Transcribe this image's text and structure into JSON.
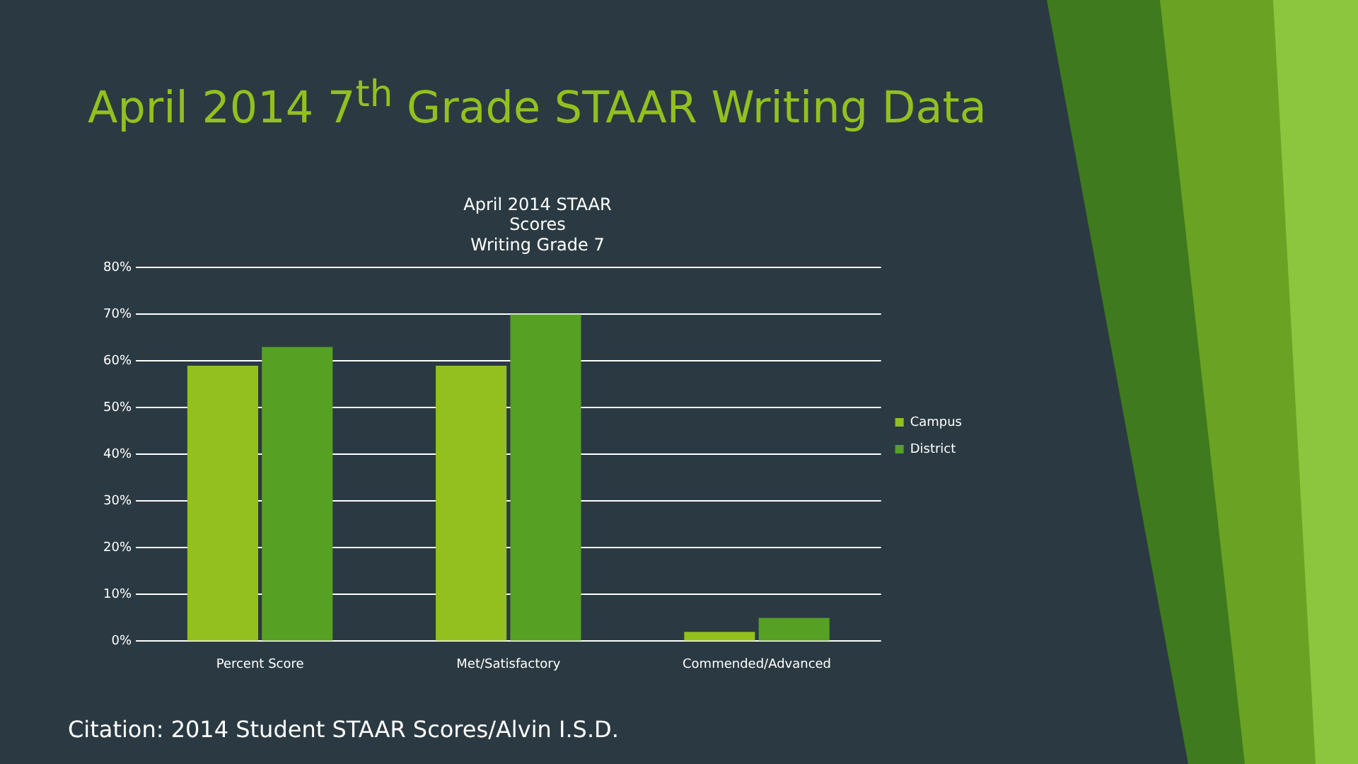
{
  "chart_data": {
    "type": "bar",
    "title": "April 2014 7$^{th}$ Grade STAAR Writing Data",
    "subtitle": "April 2014 STAAR\nScores\nWriting Grade 7",
    "categories": [
      "Percent Score",
      "Met/Satisfactory",
      "Commended/Advanced"
    ],
    "series": [
      {
        "name": "Campus",
        "color": "#93c01f",
        "values": [
          59,
          59,
          2
        ]
      },
      {
        "name": "District",
        "color": "#56a024",
        "values": [
          63,
          70,
          5
        ]
      }
    ],
    "ylim": [
      0,
      80
    ],
    "yticks": [
      {
        "value": 0,
        "label": "0%"
      },
      {
        "value": 10,
        "label": "10%"
      },
      {
        "value": 20,
        "label": "20%"
      },
      {
        "value": 30,
        "label": "30%"
      },
      {
        "value": 40,
        "label": "40%"
      },
      {
        "value": 50,
        "label": "50%"
      },
      {
        "value": 60,
        "label": "60%"
      },
      {
        "value": 70,
        "label": "70%"
      },
      {
        "value": 80,
        "label": "80%"
      }
    ],
    "grid": "y",
    "legend": "right",
    "annotations": [
      "Citation: 2014 Student STAAR Scores/Alvin I.S.D."
    ]
  }
}
